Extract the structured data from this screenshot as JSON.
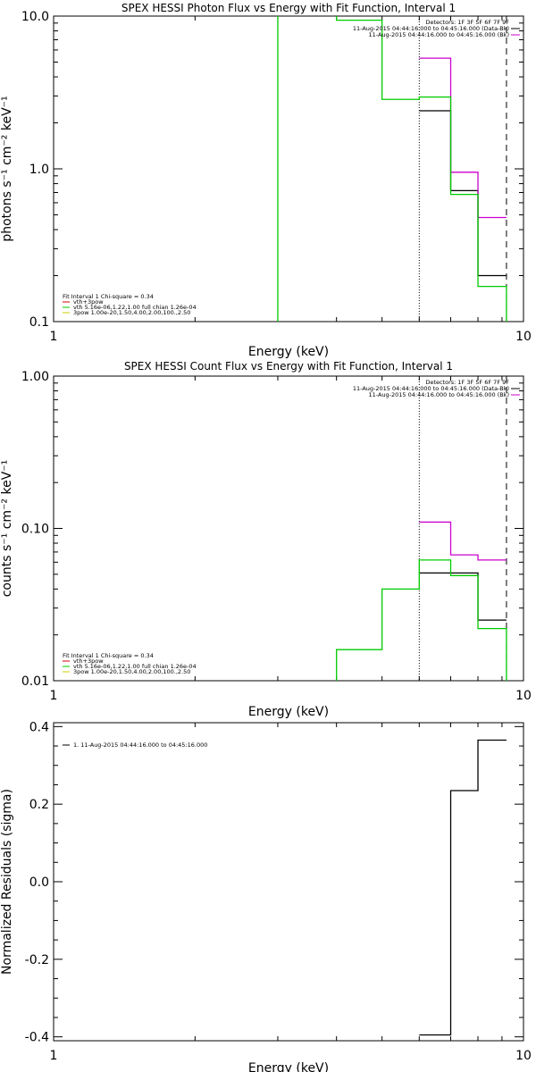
{
  "chart_data": [
    {
      "type": "line",
      "title": "SPEX HESSI Photon Flux vs Energy with Fit Function, Interval 1",
      "xlabel": "Energy (keV)",
      "ylabel": "photons s⁻¹ cm⁻² keV⁻¹",
      "xscale": "log",
      "yscale": "log",
      "xlim": [
        1,
        10
      ],
      "ylim": [
        0.1,
        10
      ],
      "xticks": [
        {
          "v": 1,
          "label": "1"
        },
        {
          "v": 10,
          "label": "10"
        }
      ],
      "yticks": [
        {
          "v": 0.1,
          "label": "0.1"
        },
        {
          "v": 1,
          "label": "1.0"
        },
        {
          "v": 10,
          "label": "10.0"
        }
      ],
      "vlines": [
        {
          "x": 6.0,
          "style": "dotted"
        },
        {
          "x": 9.2,
          "style": "dashed"
        }
      ],
      "legend_right": {
        "placement": "top-right",
        "lines": [
          {
            "text": "Detectors: 1F 3F 5F 6F 7F 9F",
            "color": ""
          },
          {
            "text": "11-Aug-2015 04:44:16.000 to 04:45:16.000 (Data-Bk)",
            "color": "#000000"
          },
          {
            "text": "11-Aug-2015 04:44:16.000 to 04:45:16.000 (Bk)",
            "color": "#cc00cc"
          }
        ]
      },
      "legend_left": {
        "placement": "bottom-left",
        "lines": [
          {
            "text": "Fit Interval 1   Chi-square = 0.34",
            "color": ""
          },
          {
            "text": "vth+3pow",
            "color": "#cc0000"
          },
          {
            "text": "vth 5.16e-06,1.22,1.00   full chian 1.26e-04",
            "color": "#00cc00"
          },
          {
            "text": "3pow 1.00e-20,1.50,4.00,2.00,100.,2.50",
            "color": "#cccc00"
          }
        ]
      },
      "series": [
        {
          "color": "#000000",
          "edges": [
            6.0,
            7.0,
            8.0,
            9.2
          ],
          "values": [
            2.4,
            0.72,
            0.2
          ]
        },
        {
          "color": "#cc00cc",
          "edges": [
            6.0,
            7.0,
            8.0,
            9.2
          ],
          "values": [
            5.3,
            0.95,
            0.48
          ]
        },
        {
          "color": "#00cc00",
          "edges": [
            3.0,
            4.0,
            5.0,
            6.0,
            7.0,
            8.0,
            9.2
          ],
          "values": [
            11,
            9.4,
            2.85,
            2.95,
            0.68,
            0.17
          ],
          "drop_to_floor": true
        }
      ]
    },
    {
      "type": "line",
      "title": "SPEX HESSI Count Flux vs Energy with Fit Function, Interval 1",
      "xlabel": "Energy (keV)",
      "ylabel": "counts s⁻¹ cm⁻² keV⁻¹",
      "xscale": "log",
      "yscale": "log",
      "xlim": [
        1,
        10
      ],
      "ylim": [
        0.01,
        1
      ],
      "xticks": [
        {
          "v": 1,
          "label": "1"
        },
        {
          "v": 10,
          "label": "10"
        }
      ],
      "yticks": [
        {
          "v": 0.01,
          "label": "0.01"
        },
        {
          "v": 0.1,
          "label": "0.10"
        },
        {
          "v": 1,
          "label": "1.00"
        }
      ],
      "vlines": [
        {
          "x": 6.0,
          "style": "dotted"
        },
        {
          "x": 9.2,
          "style": "dashed"
        }
      ],
      "legend_right": {
        "placement": "top-right",
        "lines": [
          {
            "text": "Detectors: 1F 3F 5F 6F 7F 9F",
            "color": ""
          },
          {
            "text": "11-Aug-2015 04:44:16.000 to 04:45:16.000 (Data-Bk)",
            "color": "#000000"
          },
          {
            "text": "11-Aug-2015 04:44:16.000 to 04:45:16.000 (Bk)",
            "color": "#cc00cc"
          }
        ]
      },
      "legend_left": {
        "placement": "bottom-left",
        "lines": [
          {
            "text": "Fit Interval 1   Chi-square = 0.34",
            "color": ""
          },
          {
            "text": "vth+3pow",
            "color": "#cc0000"
          },
          {
            "text": "vth 5.16e-06,1.22,1.00   full chian 1.26e-04",
            "color": "#00cc00"
          },
          {
            "text": "3pow 1.00e-20,1.50,4.00,2.00,100.,2.50",
            "color": "#cccc00"
          }
        ]
      },
      "series": [
        {
          "color": "#000000",
          "edges": [
            6.0,
            7.0,
            8.0,
            9.2
          ],
          "values": [
            0.051,
            0.051,
            0.025
          ]
        },
        {
          "color": "#cc00cc",
          "edges": [
            6.0,
            7.0,
            8.0,
            9.2
          ],
          "values": [
            0.11,
            0.067,
            0.062
          ]
        },
        {
          "color": "#00cc00",
          "edges": [
            4.0,
            5.0,
            6.0,
            7.0,
            8.0,
            9.2
          ],
          "values": [
            0.016,
            0.04,
            0.062,
            0.049,
            0.022
          ],
          "drop_to_floor": true
        }
      ]
    },
    {
      "type": "line",
      "title": "",
      "xlabel": "Energy (keV)",
      "ylabel": "Normalized Residuals (sigma)",
      "xscale": "log",
      "yscale": "linear",
      "xlim": [
        1,
        10
      ],
      "ylim": [
        -0.41,
        0.41
      ],
      "xticks": [
        {
          "v": 1,
          "label": "1"
        },
        {
          "v": 10,
          "label": "10"
        }
      ],
      "yticks": [
        {
          "v": -0.4,
          "label": "-0.4"
        },
        {
          "v": -0.2,
          "label": "-0.2"
        },
        {
          "v": 0,
          "label": "0.0"
        },
        {
          "v": 0.2,
          "label": "0.2"
        },
        {
          "v": 0.4,
          "label": "0.4"
        }
      ],
      "vlines": [],
      "legend_right": null,
      "legend_left": {
        "placement": "top-left",
        "lines": [
          {
            "text": "1. 11-Aug-2015 04:44:16.000 to 04:45:16.000",
            "color": "#000000"
          }
        ]
      },
      "series": [
        {
          "color": "#000000",
          "edges": [
            6.0,
            7.0,
            8.0,
            9.2
          ],
          "values": [
            -0.395,
            0.235,
            0.365
          ]
        }
      ]
    }
  ]
}
